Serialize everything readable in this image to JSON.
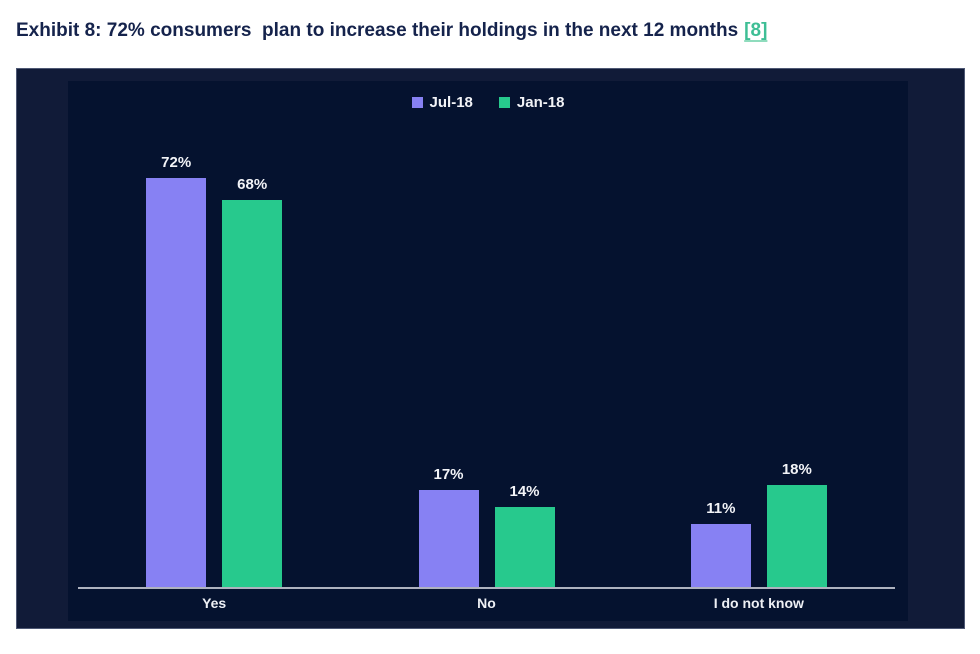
{
  "page": {
    "title": "Exhibit 8: 72% consumers  plan to increase their holdings in the next 12 months",
    "reference_link": "[8]"
  },
  "colors": {
    "title_text": "#15234C",
    "link_green": "#3EBE95",
    "panel_bg": "#111B38",
    "plot_bg": "#05122F",
    "axis_line": "#AEB2BF",
    "label_text": "#F2F3F7"
  },
  "chart_data": {
    "type": "bar",
    "title": "Exhibit 8: 72% consumers plan to increase their holdings in the next 12 months",
    "categories": [
      "Yes",
      "No",
      "I do not know"
    ],
    "series": [
      {
        "name": "Jul-18",
        "color": "#8781F3",
        "values": [
          72,
          17,
          11
        ]
      },
      {
        "name": "Jan-18",
        "color": "#27C98D",
        "values": [
          68,
          14,
          18
        ]
      }
    ],
    "value_suffix": "%",
    "xlabel": "",
    "ylabel": "",
    "ylim": [
      0,
      89
    ],
    "grid": false,
    "y_axis_visible": false,
    "legend_position": "top-center",
    "data_labels": true
  }
}
